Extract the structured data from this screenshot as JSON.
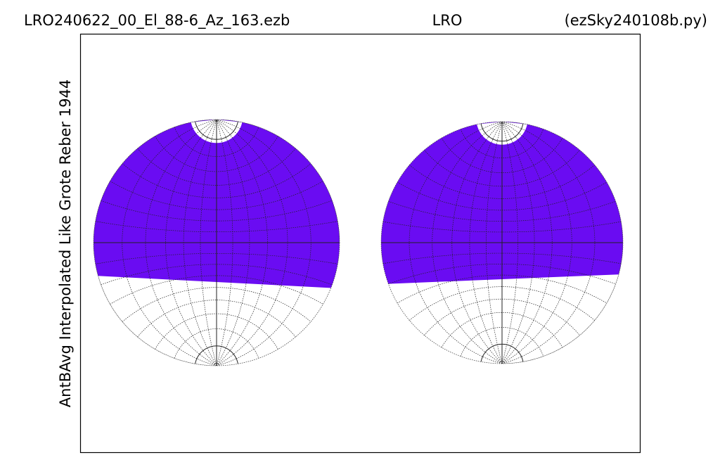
{
  "header": {
    "left": "LRO240622_00_El_88-6_Az_163.ezb",
    "center": "LRO",
    "right": "(ezSky240108b.py)"
  },
  "y_label": "AntBAvg Interpolated Like Grote Reber 1944"
}
